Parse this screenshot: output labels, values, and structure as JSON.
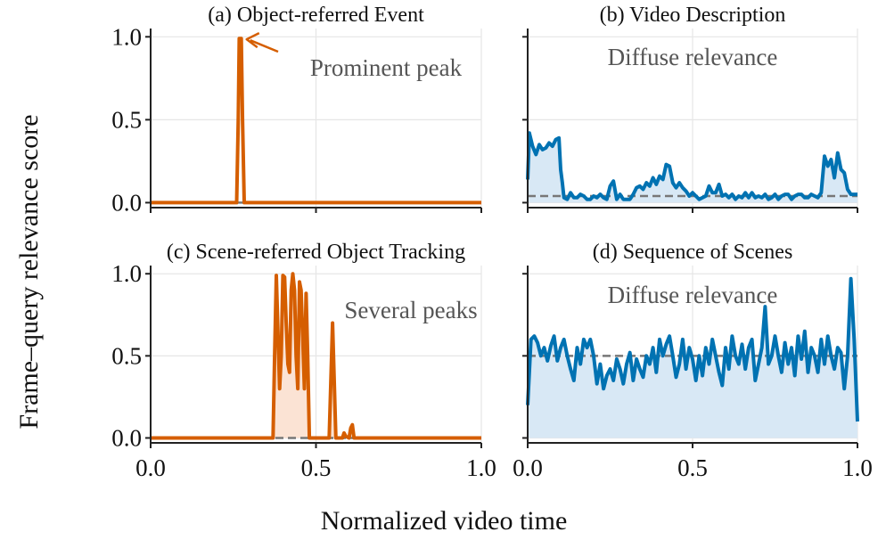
{
  "figure": {
    "ylabel": "Frame–query relevance score",
    "xlabel": "Normalized video time"
  },
  "chart_data": [
    {
      "type": "line",
      "title": "(a) Object-referred Event",
      "color": "#d55e00",
      "fill": false,
      "baseline": 0.0,
      "xlim": [
        0,
        1
      ],
      "ylim": [
        -0.03,
        1.05
      ],
      "xticks": [
        "0.0",
        "0.5",
        "1.0"
      ],
      "yticks": [
        "0.0",
        "0.5",
        "1.0"
      ],
      "show_xtick_labels": true,
      "show_ytick_labels": true,
      "grid": true,
      "annotation": {
        "text": "Prominent peak",
        "arrow_to": [
          0.285,
          0.99
        ]
      },
      "series": [
        {
          "x": [
            0,
            0.26,
            0.265,
            0.268,
            0.274,
            0.278,
            0.283,
            0.29,
            1.0
          ],
          "y": [
            0,
            0,
            0.5,
            0.99,
            0.99,
            0.5,
            0,
            0,
            0
          ]
        }
      ]
    },
    {
      "type": "area",
      "title": "(b) Video Description",
      "color": "#0072b2",
      "fill": true,
      "baseline": 0.04,
      "xlim": [
        0,
        1
      ],
      "ylim": [
        -0.03,
        1.05
      ],
      "xticks": [
        "0.0",
        "0.5",
        "1.0"
      ],
      "yticks": [
        "0.0",
        "0.5",
        "1.0"
      ],
      "show_xtick_labels": true,
      "show_ytick_labels": false,
      "grid": true,
      "annotation": {
        "text": "Diffuse relevance"
      },
      "series": [
        {
          "x": [
            0,
            0.005,
            0.015,
            0.025,
            0.035,
            0.045,
            0.055,
            0.065,
            0.075,
            0.085,
            0.095,
            0.1,
            0.105,
            0.11,
            0.12,
            0.13,
            0.14,
            0.15,
            0.16,
            0.17,
            0.18,
            0.19,
            0.2,
            0.21,
            0.22,
            0.23,
            0.24,
            0.25,
            0.26,
            0.27,
            0.28,
            0.29,
            0.3,
            0.31,
            0.32,
            0.33,
            0.34,
            0.35,
            0.36,
            0.37,
            0.38,
            0.39,
            0.4,
            0.41,
            0.42,
            0.43,
            0.44,
            0.45,
            0.46,
            0.47,
            0.48,
            0.49,
            0.5,
            0.51,
            0.52,
            0.53,
            0.54,
            0.55,
            0.56,
            0.57,
            0.58,
            0.59,
            0.6,
            0.61,
            0.62,
            0.63,
            0.64,
            0.65,
            0.66,
            0.67,
            0.68,
            0.69,
            0.7,
            0.71,
            0.72,
            0.73,
            0.74,
            0.75,
            0.76,
            0.77,
            0.78,
            0.79,
            0.8,
            0.81,
            0.82,
            0.83,
            0.84,
            0.85,
            0.86,
            0.87,
            0.88,
            0.89,
            0.9,
            0.91,
            0.92,
            0.93,
            0.94,
            0.95,
            0.96,
            0.97,
            0.98,
            0.99,
            1.0
          ],
          "y": [
            0.14,
            0.42,
            0.34,
            0.29,
            0.35,
            0.32,
            0.33,
            0.36,
            0.34,
            0.38,
            0.39,
            0.2,
            0.12,
            0.03,
            0.02,
            0.06,
            0.03,
            0.03,
            0.05,
            0.04,
            0.02,
            0.02,
            0.04,
            0.03,
            0.05,
            0.03,
            0.02,
            0.1,
            0.13,
            0.02,
            0.05,
            0.02,
            0.02,
            0.02,
            0.05,
            0.09,
            0.1,
            0.08,
            0.12,
            0.1,
            0.15,
            0.11,
            0.16,
            0.14,
            0.23,
            0.22,
            0.12,
            0.09,
            0.12,
            0.09,
            0.07,
            0.04,
            0.06,
            0.04,
            0.02,
            0.03,
            0.04,
            0.1,
            0.06,
            0.06,
            0.11,
            0.04,
            0.05,
            0.03,
            0.05,
            0.02,
            0.04,
            0.03,
            0.06,
            0.03,
            0.06,
            0.03,
            0.04,
            0.03,
            0.05,
            0.02,
            0.03,
            0.05,
            0.02,
            0.04,
            0.05,
            0.05,
            0.02,
            0.04,
            0.05,
            0.05,
            0.03,
            0.03,
            0.05,
            0.04,
            0.03,
            0.06,
            0.28,
            0.22,
            0.26,
            0.15,
            0.3,
            0.2,
            0.18,
            0.08,
            0.05,
            0.05,
            0.05
          ]
        }
      ]
    },
    {
      "type": "line",
      "title": "(c) Scene-referred Object Tracking",
      "color": "#d55e00",
      "fill": true,
      "baseline": 0.0,
      "xlim": [
        0,
        1
      ],
      "ylim": [
        -0.03,
        1.05
      ],
      "xticks": [
        "0.0",
        "0.5",
        "1.0"
      ],
      "yticks": [
        "0.0",
        "0.5",
        "1.0"
      ],
      "show_xtick_labels": true,
      "show_ytick_labels": true,
      "grid": true,
      "annotation": {
        "text": "Several peaks"
      },
      "series": [
        {
          "x": [
            0,
            0.37,
            0.375,
            0.38,
            0.39,
            0.395,
            0.4,
            0.405,
            0.41,
            0.415,
            0.42,
            0.425,
            0.43,
            0.435,
            0.44,
            0.445,
            0.45,
            0.455,
            0.46,
            0.465,
            0.47,
            0.475,
            0.48,
            0.485,
            0.49,
            0.54,
            0.55,
            0.56,
            0.57,
            0.58,
            0.585,
            0.59,
            0.6,
            0.605,
            0.61,
            0.615,
            1.0
          ],
          "y": [
            0,
            0,
            0.5,
            0.99,
            0.3,
            0.5,
            0.99,
            0.98,
            0.7,
            0.45,
            0.4,
            0.9,
            1.0,
            0.9,
            0.5,
            0.3,
            0.95,
            0.9,
            0.6,
            0.3,
            0.88,
            0.5,
            0.0,
            0.0,
            0.0,
            0.0,
            0.7,
            0.0,
            0.0,
            0.0,
            0.03,
            0.01,
            0.0,
            0.06,
            0.08,
            0.0,
            0.0
          ]
        }
      ]
    },
    {
      "type": "area",
      "title": "(d) Sequence of Scenes",
      "color": "#0072b2",
      "fill": true,
      "baseline": 0.5,
      "xlim": [
        0,
        1
      ],
      "ylim": [
        -0.03,
        1.05
      ],
      "xticks": [
        "0.0",
        "0.5",
        "1.0"
      ],
      "yticks": [
        "0.0",
        "0.5",
        "1.0"
      ],
      "show_xtick_labels": true,
      "show_ytick_labels": false,
      "grid": true,
      "annotation": {
        "text": "Diffuse relevance"
      },
      "series": [
        {
          "x": [
            0,
            0.01,
            0.02,
            0.03,
            0.04,
            0.05,
            0.06,
            0.07,
            0.08,
            0.09,
            0.1,
            0.11,
            0.12,
            0.13,
            0.14,
            0.15,
            0.16,
            0.17,
            0.18,
            0.19,
            0.2,
            0.21,
            0.22,
            0.23,
            0.24,
            0.25,
            0.26,
            0.27,
            0.28,
            0.29,
            0.3,
            0.31,
            0.32,
            0.33,
            0.34,
            0.35,
            0.36,
            0.37,
            0.38,
            0.39,
            0.4,
            0.41,
            0.42,
            0.43,
            0.44,
            0.45,
            0.46,
            0.47,
            0.48,
            0.49,
            0.5,
            0.51,
            0.52,
            0.53,
            0.54,
            0.55,
            0.56,
            0.57,
            0.58,
            0.59,
            0.6,
            0.61,
            0.62,
            0.63,
            0.64,
            0.65,
            0.66,
            0.67,
            0.68,
            0.69,
            0.7,
            0.71,
            0.72,
            0.73,
            0.74,
            0.75,
            0.76,
            0.77,
            0.78,
            0.79,
            0.8,
            0.81,
            0.82,
            0.83,
            0.84,
            0.85,
            0.86,
            0.87,
            0.88,
            0.89,
            0.9,
            0.91,
            0.92,
            0.93,
            0.94,
            0.95,
            0.96,
            0.97,
            0.98,
            0.99,
            1.0
          ],
          "y": [
            0.2,
            0.6,
            0.62,
            0.58,
            0.5,
            0.55,
            0.47,
            0.56,
            0.62,
            0.47,
            0.55,
            0.6,
            0.5,
            0.42,
            0.35,
            0.55,
            0.45,
            0.6,
            0.55,
            0.6,
            0.5,
            0.33,
            0.45,
            0.3,
            0.38,
            0.42,
            0.35,
            0.48,
            0.42,
            0.33,
            0.45,
            0.52,
            0.35,
            0.48,
            0.42,
            0.37,
            0.5,
            0.45,
            0.55,
            0.4,
            0.6,
            0.5,
            0.57,
            0.62,
            0.5,
            0.37,
            0.45,
            0.6,
            0.42,
            0.55,
            0.48,
            0.35,
            0.5,
            0.38,
            0.55,
            0.45,
            0.6,
            0.5,
            0.4,
            0.32,
            0.55,
            0.42,
            0.62,
            0.5,
            0.45,
            0.57,
            0.42,
            0.55,
            0.6,
            0.35,
            0.45,
            0.55,
            0.8,
            0.45,
            0.5,
            0.62,
            0.5,
            0.4,
            0.58,
            0.45,
            0.55,
            0.38,
            0.62,
            0.48,
            0.65,
            0.4,
            0.55,
            0.5,
            0.4,
            0.6,
            0.45,
            0.62,
            0.5,
            0.42,
            0.55,
            0.52,
            0.3,
            0.5,
            0.97,
            0.6,
            0.1
          ]
        }
      ]
    }
  ]
}
